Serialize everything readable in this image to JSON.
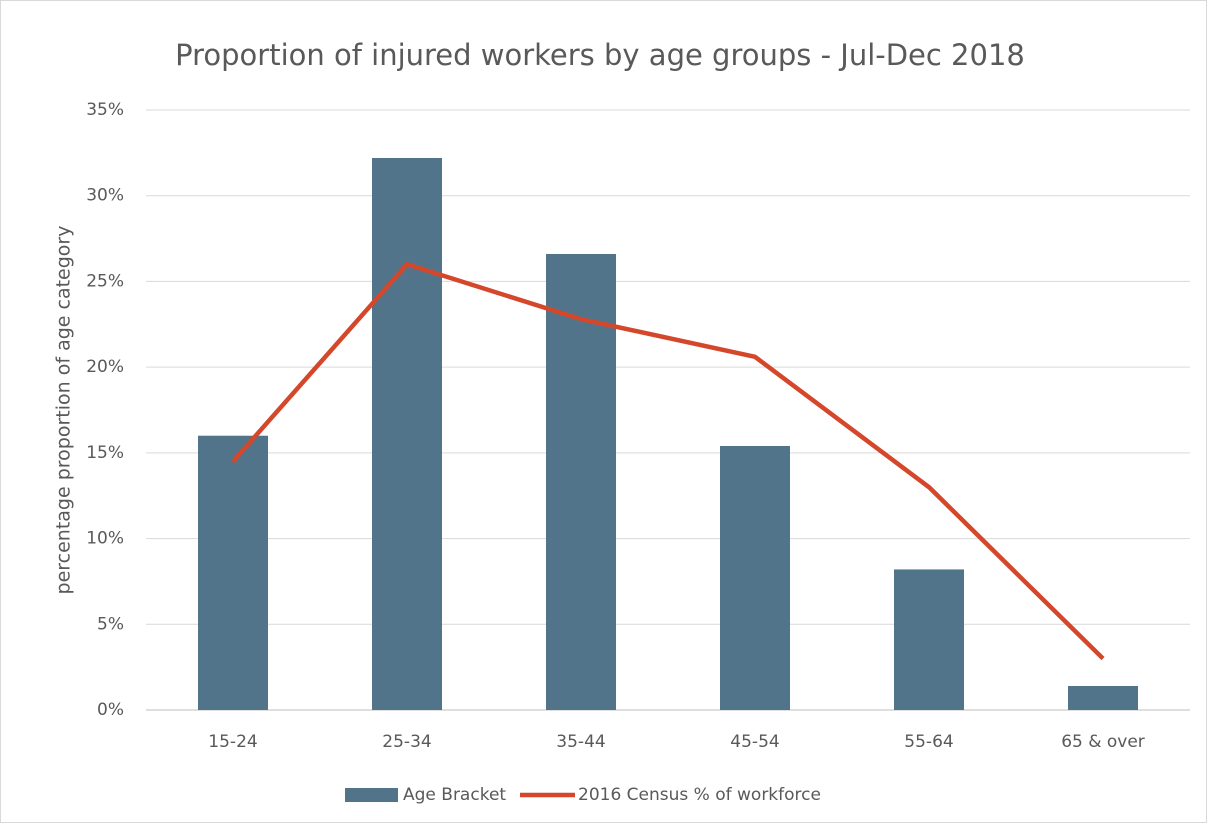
{
  "chart_data": {
    "type": "bar",
    "title": "Proportion of injured workers by age groups - Jul-Dec 2018",
    "y_label": "percentage proportion of age category",
    "categories": [
      "15-24",
      "25-34",
      "35-44",
      "45-54",
      "55-64",
      "65 & over"
    ],
    "series": [
      {
        "name": "Age Bracket",
        "type": "bar",
        "color": "#51748b",
        "values": [
          16.0,
          32.2,
          26.6,
          15.4,
          8.2,
          1.4
        ]
      },
      {
        "name": "2016 Census % of workforce",
        "type": "line",
        "color": "#d4472a",
        "values": [
          14.5,
          26.0,
          22.8,
          20.6,
          13.0,
          3.0
        ]
      }
    ],
    "ylim": [
      0,
      35
    ],
    "yticks": [
      {
        "value": 0,
        "label": "0%"
      },
      {
        "value": 5,
        "label": "5%"
      },
      {
        "value": 10,
        "label": "10%"
      },
      {
        "value": 15,
        "label": "15%"
      },
      {
        "value": 20,
        "label": "20%"
      },
      {
        "value": 25,
        "label": "25%"
      },
      {
        "value": 30,
        "label": "30%"
      },
      {
        "value": 35,
        "label": "35%"
      }
    ],
    "grid": true,
    "legend": "bottom"
  }
}
